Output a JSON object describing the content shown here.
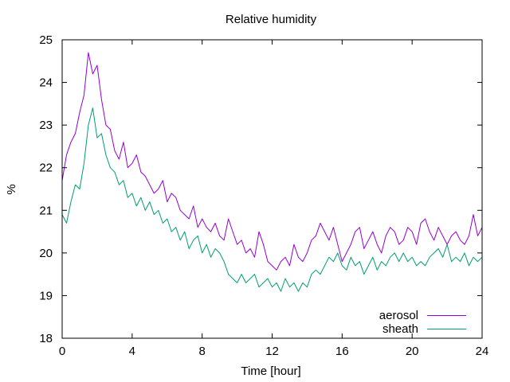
{
  "chart_data": {
    "type": "line",
    "title": "Relative humidity",
    "xlabel": "Time [hour]",
    "ylabel": "%",
    "xlim": [
      0,
      24
    ],
    "ylim": [
      18,
      25
    ],
    "xticks": [
      0,
      4,
      8,
      12,
      16,
      20,
      24
    ],
    "yticks": [
      18,
      19,
      20,
      21,
      22,
      23,
      24,
      25
    ],
    "grid": false,
    "legend_position": "bottom-right",
    "series": [
      {
        "name": "aerosol",
        "color": "#9400d3",
        "x": [
          0,
          0.25,
          0.5,
          0.75,
          1,
          1.25,
          1.5,
          1.75,
          2,
          2.25,
          2.5,
          2.75,
          3,
          3.25,
          3.5,
          3.75,
          4,
          4.25,
          4.5,
          4.75,
          5,
          5.25,
          5.5,
          5.75,
          6,
          6.25,
          6.5,
          6.75,
          7,
          7.25,
          7.5,
          7.75,
          8,
          8.25,
          8.5,
          8.75,
          9,
          9.25,
          9.5,
          9.75,
          10,
          10.25,
          10.5,
          10.75,
          11,
          11.25,
          11.5,
          11.75,
          12,
          12.25,
          12.5,
          12.75,
          13,
          13.25,
          13.5,
          13.75,
          14,
          14.25,
          14.5,
          14.75,
          15,
          15.25,
          15.5,
          15.75,
          16,
          16.25,
          16.5,
          16.75,
          17,
          17.25,
          17.5,
          17.75,
          18,
          18.25,
          18.5,
          18.75,
          19,
          19.25,
          19.5,
          19.75,
          20,
          20.25,
          20.5,
          20.75,
          21,
          21.25,
          21.5,
          21.75,
          22,
          22.25,
          22.5,
          22.75,
          23,
          23.25,
          23.5,
          23.75,
          24
        ],
        "values": [
          21.7,
          22.3,
          22.6,
          22.8,
          23.3,
          23.7,
          24.7,
          24.2,
          24.4,
          23.6,
          23.0,
          22.9,
          22.4,
          22.2,
          22.6,
          22.0,
          22.1,
          22.3,
          21.9,
          21.8,
          21.6,
          21.4,
          21.5,
          21.7,
          21.2,
          21.4,
          21.3,
          21.0,
          20.9,
          20.8,
          21.1,
          20.6,
          20.8,
          20.6,
          20.5,
          20.7,
          20.4,
          20.3,
          20.8,
          20.5,
          20.2,
          20.3,
          20.0,
          20.1,
          19.9,
          20.5,
          20.2,
          19.8,
          19.7,
          19.6,
          19.8,
          19.9,
          19.7,
          20.2,
          19.9,
          19.8,
          20.0,
          20.3,
          20.4,
          20.7,
          20.5,
          20.3,
          20.6,
          20.2,
          19.8,
          20.0,
          20.2,
          20.5,
          20.6,
          20.1,
          20.3,
          20.5,
          20.2,
          20.0,
          20.4,
          20.6,
          20.5,
          20.2,
          20.3,
          20.6,
          20.5,
          20.2,
          20.7,
          20.8,
          20.5,
          20.3,
          20.6,
          20.4,
          20.2,
          20.4,
          20.5,
          20.3,
          20.2,
          20.4,
          20.9,
          20.4,
          20.6
        ]
      },
      {
        "name": "sheath",
        "color": "#009e73",
        "x": [
          0,
          0.25,
          0.5,
          0.75,
          1,
          1.25,
          1.5,
          1.75,
          2,
          2.25,
          2.5,
          2.75,
          3,
          3.25,
          3.5,
          3.75,
          4,
          4.25,
          4.5,
          4.75,
          5,
          5.25,
          5.5,
          5.75,
          6,
          6.25,
          6.5,
          6.75,
          7,
          7.25,
          7.5,
          7.75,
          8,
          8.25,
          8.5,
          8.75,
          9,
          9.25,
          9.5,
          9.75,
          10,
          10.25,
          10.5,
          10.75,
          11,
          11.25,
          11.5,
          11.75,
          12,
          12.25,
          12.5,
          12.75,
          13,
          13.25,
          13.5,
          13.75,
          14,
          14.25,
          14.5,
          14.75,
          15,
          15.25,
          15.5,
          15.75,
          16,
          16.25,
          16.5,
          16.75,
          17,
          17.25,
          17.5,
          17.75,
          18,
          18.25,
          18.5,
          18.75,
          19,
          19.25,
          19.5,
          19.75,
          20,
          20.25,
          20.5,
          20.75,
          21,
          21.25,
          21.5,
          21.75,
          22,
          22.25,
          22.5,
          22.75,
          23,
          23.25,
          23.5,
          23.75,
          24
        ],
        "values": [
          20.9,
          20.7,
          21.2,
          21.6,
          21.5,
          22.1,
          23.0,
          23.4,
          22.7,
          22.8,
          22.3,
          22.0,
          21.9,
          21.6,
          21.7,
          21.3,
          21.4,
          21.1,
          21.3,
          21.0,
          21.2,
          20.9,
          21.0,
          20.7,
          20.8,
          20.5,
          20.6,
          20.3,
          20.5,
          20.1,
          20.3,
          20.4,
          20.0,
          20.2,
          19.9,
          20.1,
          20.0,
          19.8,
          19.5,
          19.4,
          19.3,
          19.5,
          19.3,
          19.4,
          19.5,
          19.2,
          19.3,
          19.4,
          19.2,
          19.3,
          19.1,
          19.4,
          19.2,
          19.3,
          19.1,
          19.3,
          19.2,
          19.5,
          19.6,
          19.5,
          19.7,
          19.9,
          19.8,
          20.0,
          19.7,
          19.6,
          19.9,
          19.7,
          19.8,
          19.5,
          19.7,
          19.9,
          19.6,
          19.8,
          19.7,
          19.9,
          20.0,
          19.8,
          20.0,
          19.8,
          19.9,
          19.7,
          19.8,
          19.7,
          19.9,
          20.0,
          20.1,
          19.9,
          20.2,
          19.8,
          19.9,
          19.8,
          20.0,
          19.7,
          19.9,
          19.8,
          19.9
        ]
      }
    ]
  }
}
